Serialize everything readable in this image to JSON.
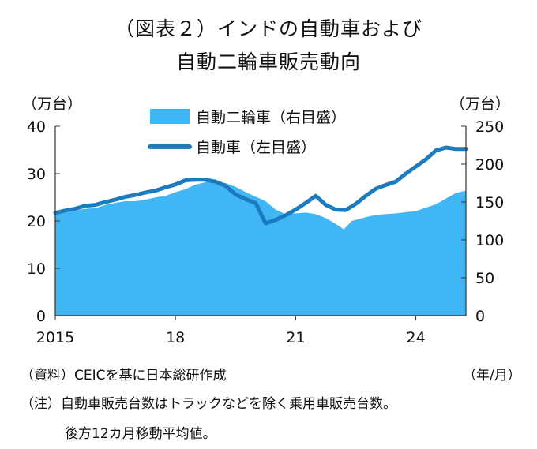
{
  "title_line1": "（図表２）インドの自動車および",
  "title_line2": "自動二輪車販売動向",
  "left_unit": "（万台）",
  "right_unit": "（万台）",
  "x_unit": "（年/月）",
  "source": "（資料）CEICを基に日本総研作成",
  "note_line1": "（注）自動車販売台数はトラックなどを除く乗用車販売台数。",
  "note_line2": "後方12カ月移動平均値。",
  "colors": {
    "two_wheeler": "#41b6f5",
    "car": "#1b7bbf"
  },
  "chart_data": {
    "type": "area+line",
    "x_start": 2015.0,
    "x_end": 2025.25,
    "x_ticks": [
      {
        "value": 2015,
        "label": "2015"
      },
      {
        "value": 2018,
        "label": "18"
      },
      {
        "value": 2021,
        "label": "21"
      },
      {
        "value": 2024,
        "label": "24"
      }
    ],
    "y_left": {
      "range": [
        0,
        40
      ],
      "ticks": [
        "0",
        "10",
        "20",
        "30",
        "40"
      ]
    },
    "y_right": {
      "range": [
        0,
        250
      ],
      "ticks": [
        "0",
        "50",
        "100",
        "150",
        "200",
        "250"
      ]
    },
    "legend": [
      "自動二輪車（右目盛）",
      "自動車（左目盛）"
    ],
    "series": [
      {
        "name": "自動二輪車（右目盛）",
        "type": "area",
        "axis": "right",
        "points": [
          [
            2015.0,
            133
          ],
          [
            2015.25,
            136
          ],
          [
            2015.5,
            139
          ],
          [
            2015.75,
            141
          ],
          [
            2016.0,
            142
          ],
          [
            2016.25,
            146
          ],
          [
            2016.5,
            149
          ],
          [
            2016.75,
            151
          ],
          [
            2017.0,
            151
          ],
          [
            2017.25,
            153
          ],
          [
            2017.5,
            156
          ],
          [
            2017.75,
            158
          ],
          [
            2018.0,
            163
          ],
          [
            2018.25,
            167
          ],
          [
            2018.5,
            173
          ],
          [
            2018.75,
            176
          ],
          [
            2019.0,
            177
          ],
          [
            2019.25,
            175
          ],
          [
            2019.5,
            170
          ],
          [
            2019.75,
            163
          ],
          [
            2020.0,
            157
          ],
          [
            2020.25,
            151
          ],
          [
            2020.5,
            140
          ],
          [
            2020.75,
            134
          ],
          [
            2021.0,
            135
          ],
          [
            2021.25,
            136
          ],
          [
            2021.5,
            134
          ],
          [
            2021.75,
            129
          ],
          [
            2022.0,
            121
          ],
          [
            2022.2,
            114
          ],
          [
            2022.4,
            125
          ],
          [
            2022.75,
            130
          ],
          [
            2023.0,
            133
          ],
          [
            2023.5,
            135
          ],
          [
            2024.0,
            138
          ],
          [
            2024.5,
            147
          ],
          [
            2025.0,
            162
          ],
          [
            2025.25,
            165
          ]
        ]
      },
      {
        "name": "自動車（左目盛）",
        "type": "line",
        "axis": "left",
        "points": [
          [
            2015.0,
            21.7
          ],
          [
            2015.25,
            22.2
          ],
          [
            2015.5,
            22.6
          ],
          [
            2015.75,
            23.2
          ],
          [
            2016.0,
            23.4
          ],
          [
            2016.25,
            24.0
          ],
          [
            2016.5,
            24.5
          ],
          [
            2016.75,
            25.1
          ],
          [
            2017.0,
            25.5
          ],
          [
            2017.25,
            26.0
          ],
          [
            2017.5,
            26.4
          ],
          [
            2017.75,
            27.1
          ],
          [
            2018.0,
            27.7
          ],
          [
            2018.25,
            28.6
          ],
          [
            2018.5,
            28.7
          ],
          [
            2018.75,
            28.7
          ],
          [
            2019.0,
            28.3
          ],
          [
            2019.25,
            27.4
          ],
          [
            2019.5,
            25.6
          ],
          [
            2019.75,
            24.6
          ],
          [
            2020.0,
            23.8
          ],
          [
            2020.25,
            19.5
          ],
          [
            2020.5,
            20.2
          ],
          [
            2020.75,
            21.2
          ],
          [
            2021.0,
            22.4
          ],
          [
            2021.25,
            23.8
          ],
          [
            2021.5,
            25.3
          ],
          [
            2021.75,
            23.4
          ],
          [
            2022.0,
            22.4
          ],
          [
            2022.25,
            22.3
          ],
          [
            2022.5,
            23.6
          ],
          [
            2022.75,
            25.3
          ],
          [
            2023.0,
            26.8
          ],
          [
            2023.25,
            27.6
          ],
          [
            2023.5,
            28.3
          ],
          [
            2023.75,
            30.0
          ],
          [
            2024.0,
            31.5
          ],
          [
            2024.25,
            33.0
          ],
          [
            2024.5,
            34.9
          ],
          [
            2024.75,
            35.5
          ],
          [
            2025.0,
            35.2
          ],
          [
            2025.25,
            35.2
          ]
        ]
      }
    ]
  }
}
